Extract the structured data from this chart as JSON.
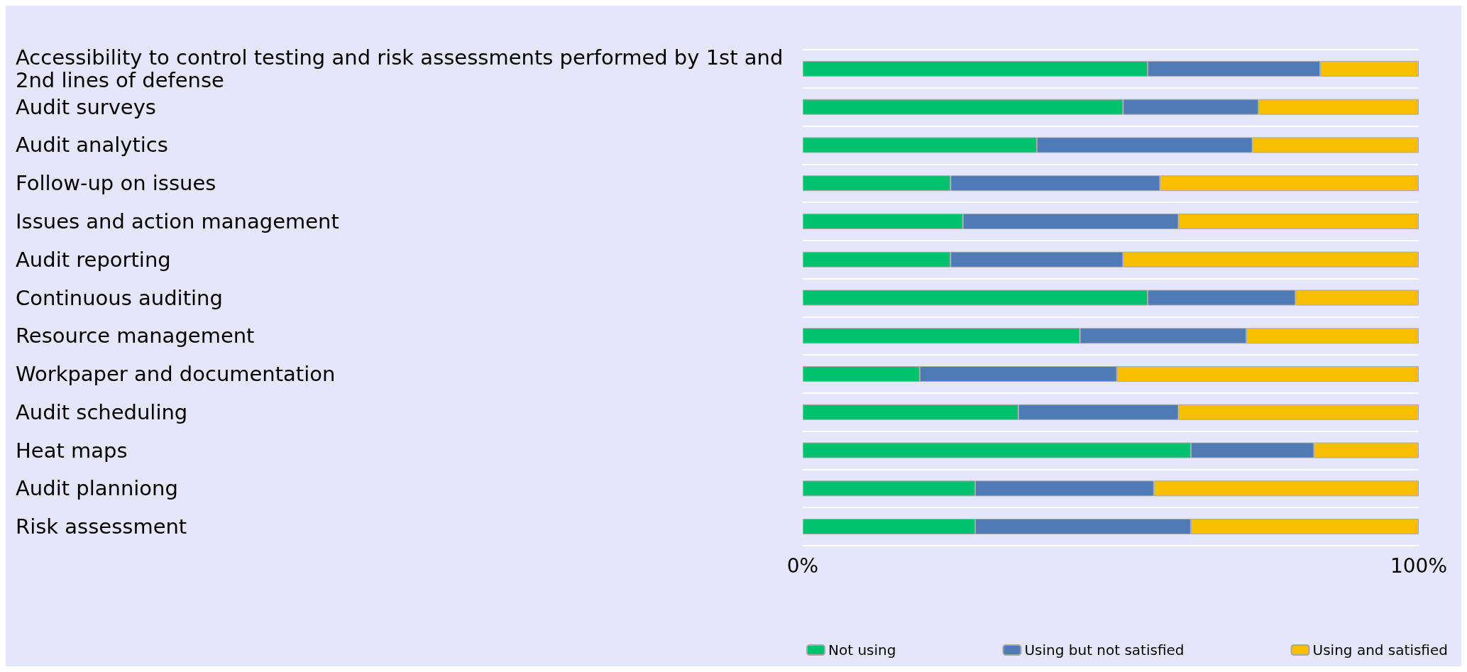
{
  "chart_data": {
    "type": "bar",
    "orientation": "horizontal",
    "stacked": true,
    "categories": [
      "Accessibility to control testing and risk assessments performed by 1st and 2nd lines of defense",
      "Audit surveys",
      "Audit analytics",
      "Follow-up on issues",
      "Issues and action management",
      "Audit reporting",
      "Continuous auditing",
      "Resource management",
      "Workpaper and documentation",
      "Audit scheduling",
      "Heat maps",
      "Audit planniong",
      "Risk assessment"
    ],
    "series": [
      {
        "name": "Not using",
        "color": "#00c16e",
        "values": [
          56,
          52,
          38,
          24,
          26,
          24,
          56,
          45,
          19,
          35,
          63,
          28,
          28
        ]
      },
      {
        "name": "Using but not satisfied",
        "color": "#4e7ab5",
        "values": [
          28,
          22,
          35,
          34,
          35,
          28,
          24,
          27,
          32,
          26,
          20,
          29,
          35
        ]
      },
      {
        "name": "Using and satisfied",
        "color": "#f7bf00",
        "values": [
          16,
          26,
          27,
          42,
          39,
          48,
          20,
          28,
          49,
          39,
          17,
          43,
          37
        ]
      }
    ],
    "xlim": [
      0,
      100
    ],
    "xticks": [
      {
        "value": 0,
        "label": "0%"
      },
      {
        "value": 100,
        "label": "100%"
      }
    ],
    "grid": "y",
    "legend": "bottom"
  }
}
